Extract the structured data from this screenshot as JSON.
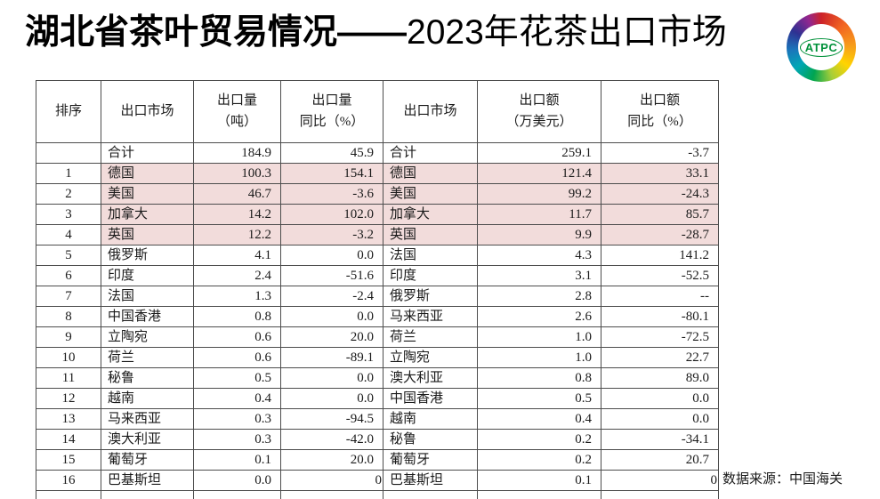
{
  "title": {
    "prefix": "湖北省茶叶贸易情况——",
    "suffix": "2023年花茶出口市场"
  },
  "logo": {
    "text": "ATPC"
  },
  "source_note": "数据来源：中国海关",
  "colors": {
    "highlight_pink": "#f2dcdb",
    "table_border": "#4d4d4d",
    "title_text": "#000000",
    "logo_green": "#00913a"
  },
  "table": {
    "headers": [
      "排序",
      "出口市场",
      "出口量\n（吨）",
      "出口量\n同比（%）",
      "出口市场",
      "出口额\n（万美元）",
      "出口额\n同比（%）"
    ],
    "column_kinds": [
      "rank",
      "market",
      "num",
      "num",
      "market",
      "num",
      "num"
    ],
    "rows": [
      {
        "rank": "",
        "cells": [
          "合计",
          "184.9",
          "45.9",
          "合计",
          "259.1",
          "-3.7"
        ],
        "highlight": false
      },
      {
        "rank": "1",
        "cells": [
          "德国",
          "100.3",
          "154.1",
          "德国",
          "121.4",
          "33.1"
        ],
        "highlight": true
      },
      {
        "rank": "2",
        "cells": [
          "美国",
          "46.7",
          "-3.6",
          "美国",
          "99.2",
          "-24.3"
        ],
        "highlight": true
      },
      {
        "rank": "3",
        "cells": [
          "加拿大",
          "14.2",
          "102.0",
          "加拿大",
          "11.7",
          "85.7"
        ],
        "highlight": true
      },
      {
        "rank": "4",
        "cells": [
          "英国",
          "12.2",
          "-3.2",
          "英国",
          "9.9",
          "-28.7"
        ],
        "highlight": true
      },
      {
        "rank": "5",
        "cells": [
          "俄罗斯",
          "4.1",
          "0.0",
          "法国",
          "4.3",
          "141.2"
        ],
        "highlight": false
      },
      {
        "rank": "6",
        "cells": [
          "印度",
          "2.4",
          "-51.6",
          "印度",
          "3.1",
          "-52.5"
        ],
        "highlight": false
      },
      {
        "rank": "7",
        "cells": [
          "法国",
          "1.3",
          "-2.4",
          "俄罗斯",
          "2.8",
          "--"
        ],
        "highlight": false
      },
      {
        "rank": "8",
        "cells": [
          "中国香港",
          "0.8",
          "0.0",
          "马来西亚",
          "2.6",
          "-80.1"
        ],
        "highlight": false
      },
      {
        "rank": "9",
        "cells": [
          "立陶宛",
          "0.6",
          "20.0",
          "荷兰",
          "1.0",
          "-72.5"
        ],
        "highlight": false
      },
      {
        "rank": "10",
        "cells": [
          "荷兰",
          "0.6",
          "-89.1",
          "立陶宛",
          "1.0",
          "22.7"
        ],
        "highlight": false
      },
      {
        "rank": "11",
        "cells": [
          "秘鲁",
          "0.5",
          "0.0",
          "澳大利亚",
          "0.8",
          "89.0"
        ],
        "highlight": false
      },
      {
        "rank": "12",
        "cells": [
          "越南",
          "0.4",
          "0.0",
          "中国香港",
          "0.5",
          "0.0"
        ],
        "highlight": false
      },
      {
        "rank": "13",
        "cells": [
          "马来西亚",
          "0.3",
          "-94.5",
          "越南",
          "0.4",
          "0.0"
        ],
        "highlight": false
      },
      {
        "rank": "14",
        "cells": [
          "澳大利亚",
          "0.3",
          "-42.0",
          "秘鲁",
          "0.2",
          "-34.1"
        ],
        "highlight": false
      },
      {
        "rank": "15",
        "cells": [
          "葡萄牙",
          "0.1",
          "20.0",
          "葡萄牙",
          "0.2",
          "20.7"
        ],
        "highlight": false
      },
      {
        "rank": "16",
        "cells": [
          "巴基斯坦",
          "0.0",
          "0",
          "巴基斯坦",
          "0.1",
          "0"
        ],
        "highlight": false,
        "flush": [
          2,
          5
        ]
      }
    ]
  }
}
